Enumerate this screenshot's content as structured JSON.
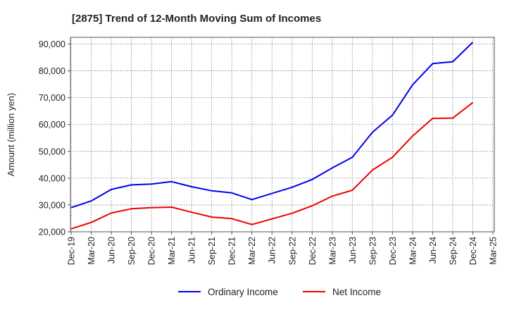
{
  "chart_data": {
    "type": "line",
    "title": "[2875]  Trend of 12-Month Moving Sum of Incomes",
    "ylabel": "Amount (million yen)",
    "xlabel": "",
    "ylim": [
      20000,
      92500
    ],
    "yticks": [
      20000,
      30000,
      40000,
      50000,
      60000,
      70000,
      80000,
      90000
    ],
    "ytick_labels": [
      "20,000",
      "30,000",
      "40,000",
      "50,000",
      "60,000",
      "70,000",
      "80,000",
      "90,000"
    ],
    "categories": [
      "Dec-19",
      "Mar-20",
      "Jun-20",
      "Sep-20",
      "Dec-20",
      "Mar-21",
      "Jun-21",
      "Sep-21",
      "Dec-21",
      "Mar-22",
      "Jun-22",
      "Sep-22",
      "Dec-22",
      "Mar-23",
      "Jun-23",
      "Sep-23",
      "Dec-23",
      "Mar-24",
      "Jun-24",
      "Sep-24",
      "Dec-24",
      "Mar-25"
    ],
    "grid": true,
    "legend_position": "bottom",
    "series": [
      {
        "name": "Ordinary Income",
        "color": "#0000ee",
        "values": [
          29000,
          31500,
          35800,
          37500,
          37800,
          38700,
          36800,
          35300,
          34500,
          32000,
          34300,
          36600,
          39500,
          43800,
          47800,
          57100,
          63500,
          74800,
          82700,
          83400,
          90700,
          null
        ]
      },
      {
        "name": "Net Income",
        "color": "#ee0000",
        "values": [
          21100,
          23500,
          27000,
          28600,
          29000,
          29200,
          27300,
          25500,
          24900,
          22700,
          24800,
          26900,
          29700,
          33300,
          35500,
          43000,
          47800,
          55700,
          62300,
          62400,
          68200,
          null
        ]
      }
    ]
  }
}
